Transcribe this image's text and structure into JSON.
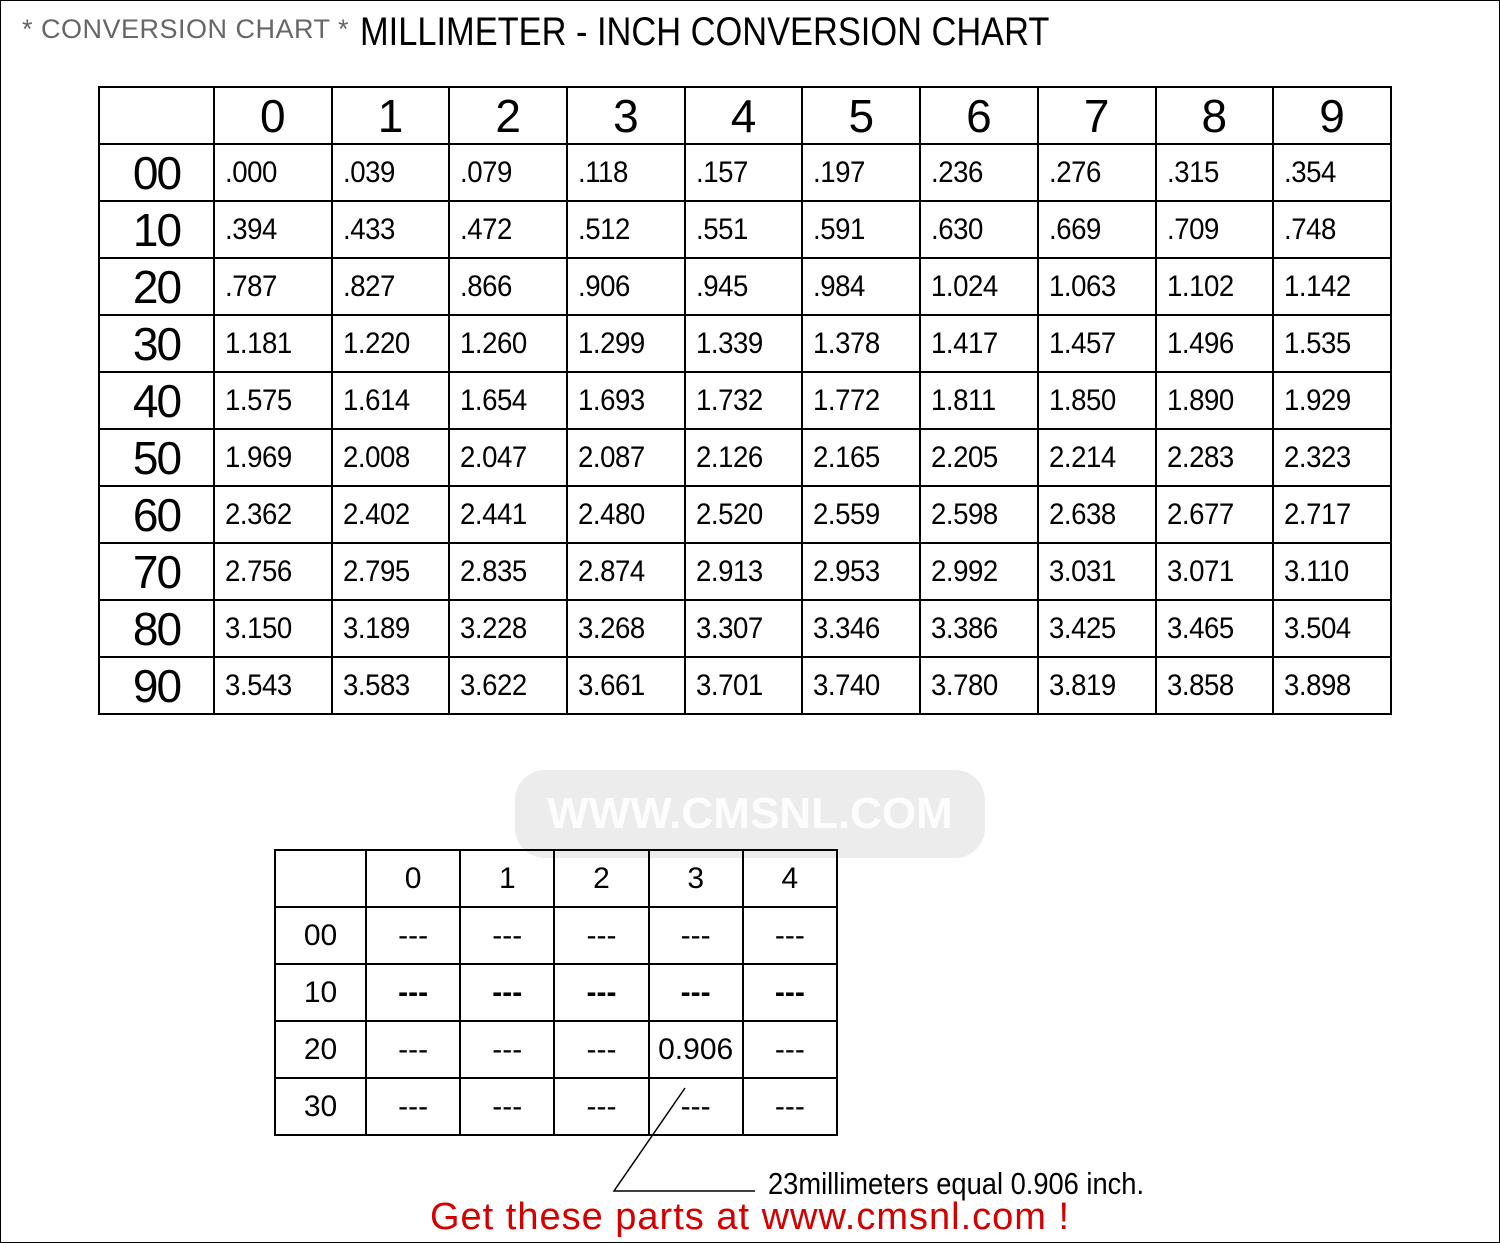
{
  "header": {
    "subtitle": "* CONVERSION CHART *",
    "title": "MILLIMETER - INCH CONVERSION CHART"
  },
  "main_table": {
    "columns": [
      "0",
      "1",
      "2",
      "3",
      "4",
      "5",
      "6",
      "7",
      "8",
      "9"
    ],
    "rows": [
      {
        "label": "00",
        "values": [
          ".000",
          ".039",
          ".079",
          ".118",
          ".157",
          ".197",
          ".236",
          ".276",
          ".315",
          ".354"
        ]
      },
      {
        "label": "10",
        "values": [
          ".394",
          ".433",
          ".472",
          ".512",
          ".551",
          ".591",
          ".630",
          ".669",
          ".709",
          ".748"
        ]
      },
      {
        "label": "20",
        "values": [
          ".787",
          ".827",
          ".866",
          ".906",
          ".945",
          ".984",
          "1.024",
          "1.063",
          "1.102",
          "1.142"
        ]
      },
      {
        "label": "30",
        "values": [
          "1.181",
          "1.220",
          "1.260",
          "1.299",
          "1.339",
          "1.378",
          "1.417",
          "1.457",
          "1.496",
          "1.535"
        ]
      },
      {
        "label": "40",
        "values": [
          "1.575",
          "1.614",
          "1.654",
          "1.693",
          "1.732",
          "1.772",
          "1.811",
          "1.850",
          "1.890",
          "1.929"
        ]
      },
      {
        "label": "50",
        "values": [
          "1.969",
          "2.008",
          "2.047",
          "2.087",
          "2.126",
          "2.165",
          "2.205",
          "2.214",
          "2.283",
          "2.323"
        ]
      },
      {
        "label": "60",
        "values": [
          "2.362",
          "2.402",
          "2.441",
          "2.480",
          "2.520",
          "2.559",
          "2.598",
          "2.638",
          "2.677",
          "2.717"
        ]
      },
      {
        "label": "70",
        "values": [
          "2.756",
          "2.795",
          "2.835",
          "2.874",
          "2.913",
          "2.953",
          "2.992",
          "3.031",
          "3.071",
          "3.110"
        ]
      },
      {
        "label": "80",
        "values": [
          "3.150",
          "3.189",
          "3.228",
          "3.268",
          "3.307",
          "3.346",
          "3.386",
          "3.425",
          "3.465",
          "3.504"
        ]
      },
      {
        "label": "90",
        "values": [
          "3.543",
          "3.583",
          "3.622",
          "3.661",
          "3.701",
          "3.740",
          "3.780",
          "3.819",
          "3.858",
          "3.898"
        ]
      }
    ]
  },
  "example_table": {
    "columns": [
      "0",
      "1",
      "2",
      "3",
      "4"
    ],
    "rows": [
      {
        "label": "00",
        "values": [
          "---",
          "---",
          "---",
          "---",
          "---"
        ]
      },
      {
        "label": "10",
        "values": [
          "---",
          "---",
          "---",
          "---",
          "---"
        ]
      },
      {
        "label": "20",
        "values": [
          "---",
          "---",
          "---",
          "0.906",
          "---"
        ]
      },
      {
        "label": "30",
        "values": [
          "---",
          "---",
          "---",
          "---",
          "---"
        ]
      }
    ]
  },
  "callout": "23millimeters equal 0.906 inch.",
  "promo": "Get these parts at www.cmsnl.com !",
  "watermark": "WWW.CMSNL.COM",
  "colors": {
    "promo": "#d40000",
    "subtitle": "#666666"
  }
}
